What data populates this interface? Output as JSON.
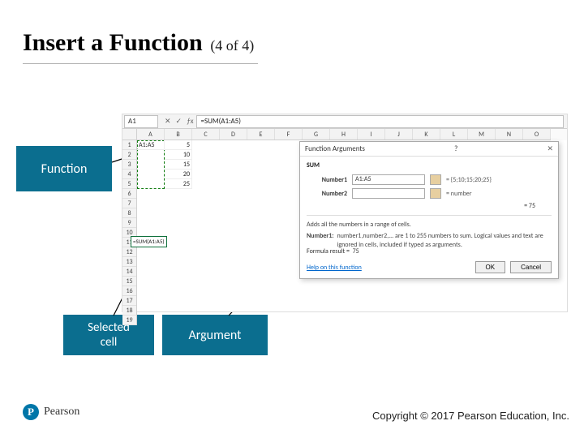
{
  "title": {
    "main": "Insert a Function",
    "sub": "(4 of 4)"
  },
  "callouts": {
    "function": "Function",
    "selected_cell": "Selected\ncell",
    "argument": "Argument"
  },
  "excel": {
    "namebox": "A1",
    "formula_bar": "=SUM(A1:A5)",
    "columns": [
      "A",
      "B",
      "C",
      "D",
      "E",
      "F",
      "G",
      "H",
      "I",
      "J",
      "K",
      "L",
      "M",
      "N",
      "O"
    ],
    "rows": [
      "1",
      "2",
      "3",
      "4",
      "5",
      "6",
      "7",
      "8",
      "9",
      "10",
      "11",
      "12",
      "13",
      "14",
      "15",
      "16",
      "17",
      "18",
      "19"
    ],
    "cells": {
      "A1": "A1:A5",
      "B1": "5",
      "B2": "10",
      "B3": "15",
      "B4": "20",
      "B5": "25"
    },
    "selected_cell_formula": "=SUM(A1:A5)"
  },
  "dialog": {
    "title": "Function Arguments",
    "function_name": "SUM",
    "args": [
      {
        "label": "Number1",
        "value": "A1:A5",
        "preview": "= {5;10;15;20;25}"
      },
      {
        "label": "Number2",
        "value": "",
        "preview": "= number"
      }
    ],
    "intermediate_result": "= 75",
    "description": "Adds all the numbers in a range of cells.",
    "arg_help_label": "Number1:",
    "arg_help_text": "number1,number2,... are 1 to 255 numbers to sum. Logical values and text are ignored in cells, included if typed as arguments.",
    "formula_result_label": "Formula result =",
    "formula_result_value": "75",
    "help_link": "Help on this function",
    "ok": "OK",
    "cancel": "Cancel"
  },
  "footer": {
    "brand": "Pearson",
    "brand_initial": "P",
    "copyright": "Copyright © 2017 Pearson Education, Inc."
  },
  "colors": {
    "callout_bg": "#0b6e8f",
    "marquee": "#107c10",
    "brand": "#0076a8"
  }
}
